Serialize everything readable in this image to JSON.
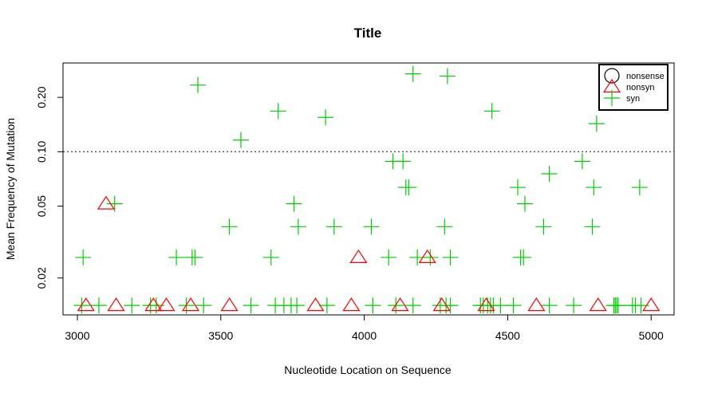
{
  "chart_data": {
    "type": "scatter",
    "title": "Title",
    "xlabel": "Nucleotide Location on Sequence",
    "ylabel": "Mean Frequency of Mutation",
    "xlim": [
      2950,
      5080
    ],
    "ylim": [
      0.0125,
      0.31
    ],
    "y_scale": "log",
    "x_ticks": [
      3000,
      3500,
      4000,
      4500,
      5000
    ],
    "y_ticks": [
      0.02,
      0.05,
      0.1,
      0.2
    ],
    "x_tick_labels": [
      "3000",
      "3500",
      "4000",
      "4500",
      "5000"
    ],
    "y_tick_labels": [
      "0.02",
      "0.05",
      "0.10",
      "0.20"
    ],
    "reference_line": {
      "y": 0.1,
      "style": "dotted",
      "color": "#555555"
    },
    "grid": false,
    "legend": {
      "position": "top-right",
      "entries": [
        {
          "label": "nonsense",
          "symbol": "circle",
          "color": "#000000"
        },
        {
          "label": "nonsyn",
          "symbol": "triangle",
          "color": "#ff0000"
        },
        {
          "label": "syn",
          "symbol": "plus",
          "color": "#00cd00"
        }
      ]
    },
    "series": [
      {
        "name": "nonsense",
        "symbol": "circle",
        "color": "#000000",
        "points": []
      },
      {
        "name": "nonsyn",
        "symbol": "triangle",
        "color": "#ff0000",
        "points": [
          [
            3030,
            0.0141
          ],
          [
            3100,
            0.0515
          ],
          [
            3135,
            0.0141
          ],
          [
            3265,
            0.0141
          ],
          [
            3310,
            0.0141
          ],
          [
            3395,
            0.0141
          ],
          [
            3530,
            0.0141
          ],
          [
            3830,
            0.0141
          ],
          [
            3980,
            0.026
          ],
          [
            3955,
            0.0141
          ],
          [
            4125,
            0.0141
          ],
          [
            4220,
            0.026
          ],
          [
            4270,
            0.0141
          ],
          [
            4425,
            0.0141
          ],
          [
            4600,
            0.0141
          ],
          [
            4815,
            0.0141
          ],
          [
            5000,
            0.0141
          ]
        ]
      },
      {
        "name": "syn",
        "symbol": "plus",
        "color": "#00cd00",
        "points": [
          [
            3020,
            0.026
          ],
          [
            3130,
            0.0515
          ],
          [
            3420,
            0.234
          ],
          [
            3570,
            0.116
          ],
          [
            3700,
            0.168
          ],
          [
            3865,
            0.155
          ],
          [
            3530,
            0.0385
          ],
          [
            3755,
            0.0515
          ],
          [
            3770,
            0.0385
          ],
          [
            3895,
            0.0385
          ],
          [
            4025,
            0.0385
          ],
          [
            4100,
            0.0885
          ],
          [
            4135,
            0.0885
          ],
          [
            4145,
            0.0635
          ],
          [
            4155,
            0.0635
          ],
          [
            4170,
            0.27
          ],
          [
            4290,
            0.262
          ],
          [
            4280,
            0.0385
          ],
          [
            4445,
            0.168
          ],
          [
            4535,
            0.0635
          ],
          [
            4560,
            0.0515
          ],
          [
            4545,
            0.026
          ],
          [
            4555,
            0.026
          ],
          [
            4625,
            0.0385
          ],
          [
            4645,
            0.0755
          ],
          [
            4760,
            0.0885
          ],
          [
            4795,
            0.0385
          ],
          [
            4800,
            0.0635
          ],
          [
            4810,
            0.143
          ],
          [
            4960,
            0.0635
          ],
          [
            3345,
            0.026
          ],
          [
            3400,
            0.026
          ],
          [
            3410,
            0.026
          ],
          [
            3675,
            0.026
          ],
          [
            4085,
            0.026
          ],
          [
            4185,
            0.026
          ],
          [
            4230,
            0.026
          ],
          [
            4300,
            0.026
          ],
          [
            3015,
            0.0141
          ],
          [
            3075,
            0.0141
          ],
          [
            3190,
            0.0141
          ],
          [
            3255,
            0.0141
          ],
          [
            3275,
            0.0141
          ],
          [
            3380,
            0.0141
          ],
          [
            3440,
            0.0141
          ],
          [
            3605,
            0.0141
          ],
          [
            3690,
            0.0141
          ],
          [
            3720,
            0.0141
          ],
          [
            3745,
            0.0141
          ],
          [
            3765,
            0.0141
          ],
          [
            3870,
            0.0141
          ],
          [
            4030,
            0.0141
          ],
          [
            4110,
            0.0141
          ],
          [
            4170,
            0.0141
          ],
          [
            4265,
            0.0141
          ],
          [
            4285,
            0.0141
          ],
          [
            4300,
            0.0141
          ],
          [
            4405,
            0.0141
          ],
          [
            4415,
            0.0141
          ],
          [
            4430,
            0.0141
          ],
          [
            4440,
            0.0141
          ],
          [
            4450,
            0.0141
          ],
          [
            4475,
            0.0141
          ],
          [
            4520,
            0.0141
          ],
          [
            4645,
            0.0141
          ],
          [
            4730,
            0.0141
          ],
          [
            4870,
            0.0141
          ],
          [
            4875,
            0.0141
          ],
          [
            4880,
            0.0141
          ],
          [
            4885,
            0.0141
          ],
          [
            4935,
            0.0141
          ],
          [
            4945,
            0.0141
          ],
          [
            4965,
            0.0141
          ]
        ]
      }
    ]
  }
}
